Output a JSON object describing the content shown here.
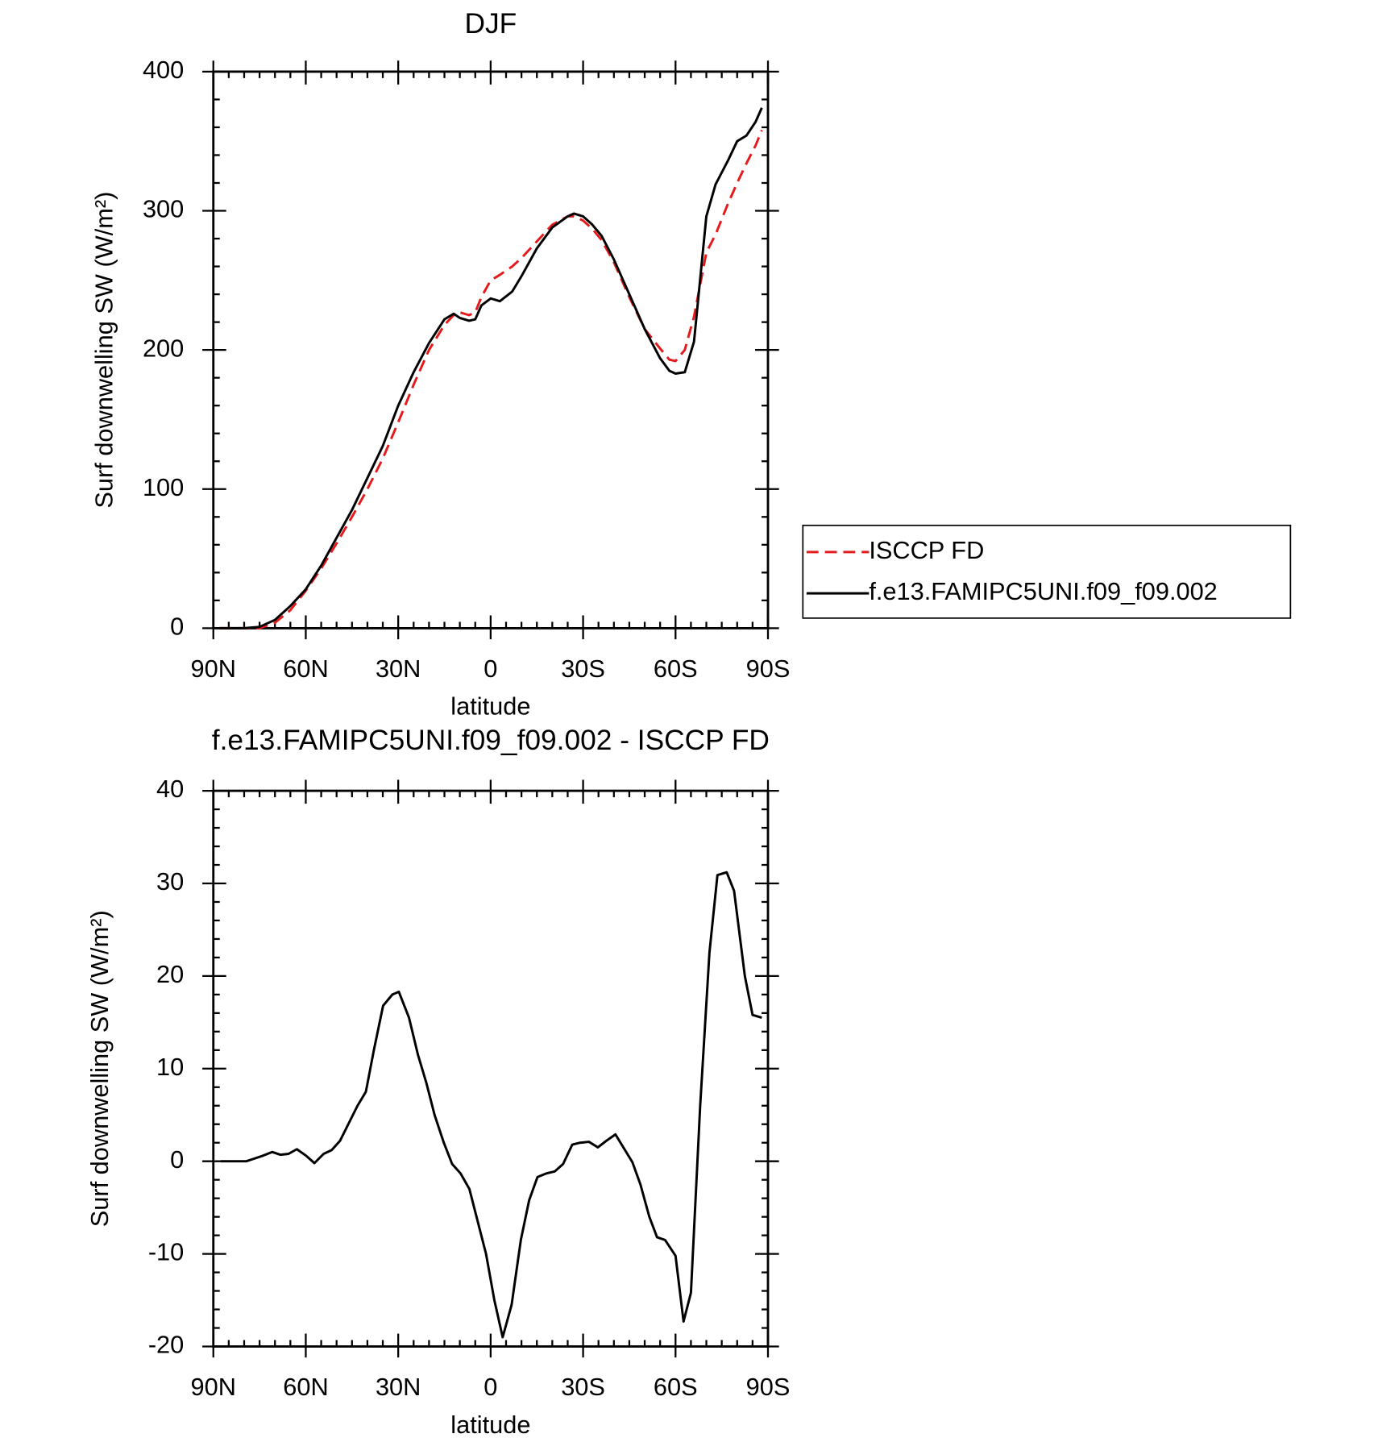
{
  "chart_data": [
    {
      "type": "line",
      "title": "DJF",
      "xlabel": "latitude",
      "ylabel": "Surf downwelling SW (W/m²)",
      "x": [
        88,
        80,
        75,
        70,
        65,
        60,
        55,
        50,
        45,
        40,
        35,
        30,
        25,
        20,
        15,
        12,
        10,
        7,
        5,
        3,
        0,
        -3,
        -7,
        -10,
        -15,
        -20,
        -25,
        -27,
        -30,
        -33,
        -36,
        -40,
        -45,
        -50,
        -55,
        -58,
        -60,
        -63,
        -66,
        -70,
        -73,
        -77,
        -80,
        -83,
        -86,
        -88
      ],
      "series": [
        {
          "name": "ISCCP FD",
          "color": "#e41a1c",
          "style": "dashed",
          "values": [
            0,
            0,
            0,
            4,
            13,
            27,
            43,
            61,
            80,
            100,
            122,
            148,
            175,
            200,
            218,
            225,
            227,
            225,
            227,
            238,
            250,
            254,
            260,
            266,
            278,
            290,
            296,
            296,
            293,
            287,
            279,
            263,
            238,
            215,
            201,
            193,
            192,
            200,
            224,
            270,
            283,
            305,
            320,
            334,
            347,
            358
          ]
        },
        {
          "name": "f.e13.FAMIPC5UNI.f09_f09.002",
          "color": "#000000",
          "style": "solid",
          "values": [
            0,
            0,
            1,
            6,
            16,
            28,
            45,
            65,
            85,
            108,
            131,
            160,
            184,
            205,
            222,
            226,
            223,
            221,
            222,
            232,
            237,
            235,
            242,
            253,
            273,
            288,
            296,
            298,
            296,
            290,
            282,
            265,
            240,
            215,
            194,
            185,
            183,
            184,
            206,
            296,
            319,
            336,
            350,
            354,
            364,
            374
          ]
        }
      ],
      "xlim": [
        90,
        -90
      ],
      "xticks": [
        {
          "value": 90,
          "label": "90N"
        },
        {
          "value": 60,
          "label": "60N"
        },
        {
          "value": 30,
          "label": "30N"
        },
        0,
        {
          "value": -30,
          "label": "30S"
        },
        {
          "value": -60,
          "label": "60S"
        },
        {
          "value": -90,
          "label": "90S"
        }
      ],
      "x_minor_ticks": [
        85,
        80,
        75,
        70,
        65,
        55,
        50,
        45,
        40,
        35,
        25,
        20,
        15,
        10,
        5,
        -5,
        -10,
        -15,
        -20,
        -25,
        -35,
        -40,
        -45,
        -50,
        -55,
        -65,
        -70,
        -75,
        -80,
        -85
      ],
      "ylim": [
        0,
        400
      ],
      "yticks": [
        0,
        100,
        200,
        300,
        400
      ],
      "y_minor_ticks": [
        20,
        40,
        60,
        80,
        120,
        140,
        160,
        180,
        220,
        240,
        260,
        280,
        320,
        340,
        360,
        380
      ],
      "legend": "right"
    },
    {
      "type": "line",
      "title": "f.e13.FAMIPC5UNI.f09_f09.002 - ISCCP FD",
      "xlabel": "latitude",
      "ylabel": "Surf downwelling SW (W/m²)",
      "x": [
        87.6,
        79.3,
        76.6,
        73.9,
        70.9,
        68.2,
        65.6,
        62.9,
        59.9,
        57.2,
        54.2,
        51.6,
        48.9,
        46.2,
        43.2,
        40.5,
        37.9,
        34.9,
        31.9,
        29.8,
        26.5,
        23.6,
        20.9,
        18.2,
        15.2,
        12.5,
        9.8,
        6.9,
        4.2,
        1.5,
        -1.2,
        -3.9,
        -6.8,
        -9.8,
        -12.5,
        -15.2,
        -18.2,
        -20.8,
        -23.5,
        -26.5,
        -29,
        -31.9,
        -34.8,
        -37.5,
        -40.5,
        -46,
        -48.6,
        -51.5,
        -54,
        -56.6,
        -60,
        -62.6,
        -65,
        -68,
        -71,
        -73.6,
        -76.6,
        -79,
        -82.5,
        -85,
        -88
      ],
      "values": [
        0,
        0,
        0.3,
        0.6,
        1,
        0.7,
        0.8,
        1.3,
        0.6,
        -0.2,
        0.8,
        1.2,
        2.2,
        4,
        6,
        7.5,
        12,
        16.8,
        18,
        18.3,
        15.5,
        11.5,
        8.5,
        5,
        2,
        -0.3,
        -1.3,
        -3,
        -6.5,
        -10,
        -15,
        -19,
        -15.5,
        -8.5,
        -4.2,
        -1.7,
        -1.3,
        -1.1,
        -0.3,
        1.8,
        2,
        2.1,
        1.5,
        2.2,
        2.9,
        -0.1,
        -2.5,
        -6,
        -8.2,
        -8.5,
        -10.2,
        -17.3,
        -14.2,
        6,
        22.5,
        30.9,
        31.2,
        29.2,
        20,
        15.8,
        15.5
      ],
      "color": "#000000",
      "xlim": [
        90,
        -90
      ],
      "xticks": [
        {
          "value": 90,
          "label": "90N"
        },
        {
          "value": 60,
          "label": "60N"
        },
        {
          "value": 30,
          "label": "30N"
        },
        0,
        {
          "value": -30,
          "label": "30S"
        },
        {
          "value": -60,
          "label": "60S"
        },
        {
          "value": -90,
          "label": "90S"
        }
      ],
      "x_minor_ticks": [
        85,
        80,
        75,
        70,
        65,
        55,
        50,
        45,
        40,
        35,
        25,
        20,
        15,
        10,
        5,
        -5,
        -10,
        -15,
        -20,
        -25,
        -35,
        -40,
        -45,
        -50,
        -55,
        -65,
        -70,
        -75,
        -80,
        -85
      ],
      "ylim": [
        -20,
        40
      ],
      "yticks": [
        -20,
        -10,
        0,
        10,
        20,
        30,
        40
      ],
      "y_minor_ticks": [
        -18,
        -16,
        -14,
        -12,
        -8,
        -6,
        -4,
        -2,
        2,
        4,
        6,
        8,
        12,
        14,
        16,
        18,
        22,
        24,
        26,
        28,
        32,
        34,
        36,
        38
      ]
    }
  ]
}
